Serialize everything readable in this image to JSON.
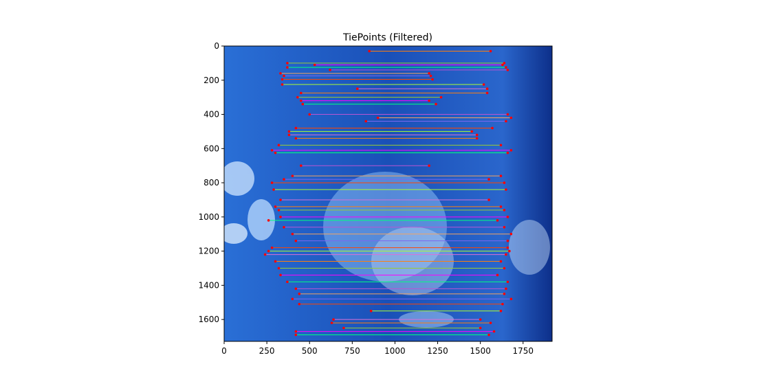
{
  "chart_data": {
    "type": "scatter",
    "title": "TiePoints (Filtered)",
    "xlim": [
      0,
      1920
    ],
    "ylim": [
      1728,
      0
    ],
    "y_inverted": true,
    "xticks": [
      0,
      250,
      500,
      750,
      1000,
      1250,
      1500,
      1750
    ],
    "yticks": [
      0,
      200,
      400,
      600,
      800,
      1000,
      1200,
      1400,
      1600
    ],
    "grid": false,
    "point_color": "#ff0000",
    "line_colors": [
      "#ff7f0e",
      "#9acd32",
      "#ff00ff",
      "#00ff7f",
      "#ba55d3",
      "#f4a460",
      "#7b68ee",
      "#ff4500",
      "#adff2f",
      "#da70d6"
    ],
    "background": "satellite image (blue false-color)",
    "matches": [
      [
        30,
        850,
        1560
      ],
      [
        100,
        370,
        1640
      ],
      [
        110,
        530,
        1630
      ],
      [
        125,
        370,
        1650
      ],
      [
        140,
        620,
        1660
      ],
      [
        160,
        330,
        1200
      ],
      [
        175,
        350,
        1210
      ],
      [
        195,
        340,
        1220
      ],
      [
        225,
        340,
        1520
      ],
      [
        250,
        780,
        1540
      ],
      [
        275,
        450,
        1540
      ],
      [
        300,
        430,
        1270
      ],
      [
        320,
        450,
        1200
      ],
      [
        340,
        460,
        1240
      ],
      [
        400,
        500,
        1660
      ],
      [
        420,
        900,
        1680
      ],
      [
        440,
        830,
        1650
      ],
      [
        480,
        420,
        1570
      ],
      [
        500,
        380,
        1450
      ],
      [
        520,
        380,
        1480
      ],
      [
        540,
        420,
        1480
      ],
      [
        580,
        320,
        1620
      ],
      [
        610,
        280,
        1680
      ],
      [
        625,
        300,
        1660
      ],
      [
        700,
        450,
        1200
      ],
      [
        760,
        400,
        1620
      ],
      [
        780,
        350,
        1550
      ],
      [
        800,
        280,
        1640
      ],
      [
        840,
        290,
        1650
      ],
      [
        900,
        330,
        1550
      ],
      [
        940,
        300,
        1620
      ],
      [
        960,
        320,
        1640
      ],
      [
        1000,
        330,
        1660
      ],
      [
        1020,
        260,
        1600
      ],
      [
        1060,
        350,
        1640
      ],
      [
        1100,
        400,
        1680
      ],
      [
        1140,
        420,
        1660
      ],
      [
        1180,
        280,
        1660
      ],
      [
        1200,
        260,
        1670
      ],
      [
        1220,
        240,
        1650
      ],
      [
        1260,
        300,
        1620
      ],
      [
        1300,
        320,
        1640
      ],
      [
        1340,
        330,
        1600
      ],
      [
        1380,
        370,
        1660
      ],
      [
        1420,
        420,
        1650
      ],
      [
        1450,
        440,
        1640
      ],
      [
        1480,
        400,
        1680
      ],
      [
        1510,
        440,
        1630
      ],
      [
        1550,
        860,
        1620
      ],
      [
        1600,
        640,
        1500
      ],
      [
        1620,
        630,
        1560
      ],
      [
        1650,
        700,
        1500
      ],
      [
        1670,
        420,
        1580
      ],
      [
        1690,
        420,
        1550
      ]
    ]
  }
}
